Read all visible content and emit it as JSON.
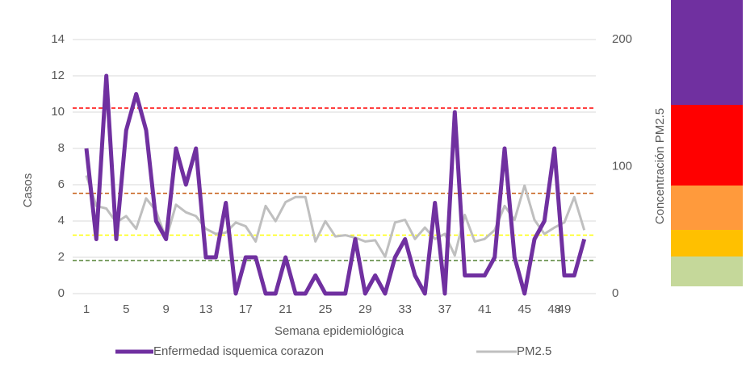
{
  "chart_data": {
    "type": "line",
    "categories": [
      "1",
      null,
      null,
      null,
      "5",
      null,
      null,
      null,
      "9",
      null,
      null,
      null,
      "13",
      null,
      null,
      null,
      "17",
      null,
      null,
      null,
      "21",
      null,
      null,
      null,
      "25",
      null,
      null,
      null,
      "29",
      null,
      null,
      null,
      "33",
      null,
      null,
      null,
      "37",
      null,
      null,
      null,
      "41",
      null,
      null,
      null,
      "45",
      null,
      null,
      "48",
      "49",
      null,
      null
    ],
    "series": [
      {
        "name": "Enfermedad isquemica corazon",
        "color": "#7030a0",
        "values": [
          8,
          3,
          12,
          3,
          9,
          11,
          9,
          4,
          3,
          8,
          6,
          8,
          2,
          2,
          5,
          0,
          2,
          2,
          0,
          0,
          2,
          0,
          0,
          1,
          0,
          0,
          0,
          3,
          0,
          1,
          0,
          2,
          3,
          1,
          0,
          5,
          0,
          10,
          1,
          1,
          1,
          2,
          8,
          2,
          0,
          3,
          4,
          8,
          1,
          1,
          3
        ]
      },
      {
        "name": "PM2.5",
        "color": "#bfbfbf",
        "axis": "y2",
        "values": [
          93,
          69,
          67,
          56,
          61,
          51,
          75,
          65,
          43,
          70,
          64,
          61,
          51,
          47,
          48,
          56,
          53,
          41,
          69,
          57,
          72,
          76,
          76,
          41,
          57,
          45,
          46,
          44,
          41,
          42,
          29,
          56,
          58,
          43,
          52,
          43,
          47,
          30,
          62,
          41,
          43,
          50,
          69,
          58,
          85,
          58,
          47,
          52,
          56,
          76,
          50
        ]
      }
    ],
    "reference_lines": [
      {
        "value": 146,
        "color": "#ff0000",
        "axis": "y2"
      },
      {
        "value": 79,
        "color": "#c55a11",
        "axis": "y2"
      },
      {
        "value": 46,
        "color": "#ffff00",
        "axis": "y2"
      },
      {
        "value": 26,
        "color": "#548235",
        "axis": "y2"
      }
    ],
    "ylim": [
      0,
      14
    ],
    "yticks": [
      0,
      2,
      4,
      6,
      8,
      10,
      12,
      14
    ],
    "y2lim": [
      0,
      200
    ],
    "y2ticks": [
      0,
      100,
      200
    ],
    "y_label": "Casos",
    "y2_label": "Concentración PM2.5",
    "x_label": "Semana epidemiológica",
    "grid": true,
    "legend": "bottom"
  }
}
